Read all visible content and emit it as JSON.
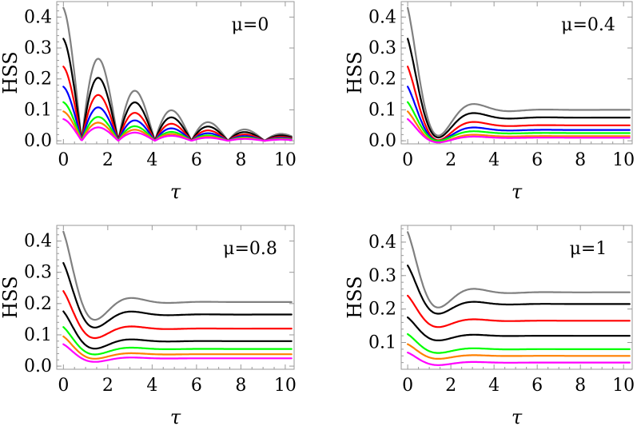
{
  "chart_data": [
    {
      "type": "line",
      "annotation": "μ=0",
      "xlabel": "τ",
      "ylabel": "HSS",
      "xlim": [
        -0.3,
        10.4
      ],
      "ylim": [
        -0.01,
        0.45
      ],
      "xticks": [
        0,
        2,
        4,
        6,
        8,
        10
      ],
      "yticks": [
        0.0,
        0.1,
        0.2,
        0.3,
        0.4
      ],
      "ytick_labels": [
        "0.0",
        "0.1",
        "0.2",
        "0.3",
        "0.4"
      ],
      "mu": 0,
      "series": [
        {
          "color": "#808080",
          "initial": 0.43
        },
        {
          "color": "#000000",
          "initial": 0.33
        },
        {
          "color": "#ff0000",
          "initial": 0.24
        },
        {
          "color": "#0000ff",
          "initial": 0.175
        },
        {
          "color": "#00ff00",
          "initial": 0.125
        },
        {
          "color": "#ff8000",
          "initial": 0.095
        },
        {
          "color": "#ff00ff",
          "initial": 0.07
        }
      ]
    },
    {
      "type": "line",
      "annotation": "μ=0.4",
      "xlabel": "τ",
      "ylabel": "HSS",
      "xlim": [
        -0.3,
        10.4
      ],
      "ylim": [
        -0.01,
        0.45
      ],
      "xticks": [
        0,
        2,
        4,
        6,
        8,
        10
      ],
      "yticks": [
        0.0,
        0.1,
        0.2,
        0.3,
        0.4
      ],
      "ytick_labels": [
        "0.0",
        "0.1",
        "0.2",
        "0.3",
        "0.4"
      ],
      "mu": 0.4,
      "series": [
        {
          "color": "#808080",
          "initial": 0.43,
          "final": 0.1
        },
        {
          "color": "#000000",
          "initial": 0.33,
          "final": 0.075
        },
        {
          "color": "#ff0000",
          "initial": 0.24,
          "final": 0.05
        },
        {
          "color": "#0000ff",
          "initial": 0.175,
          "final": 0.035
        },
        {
          "color": "#00ff00",
          "initial": 0.125,
          "final": 0.025
        },
        {
          "color": "#ff8000",
          "initial": 0.095,
          "final": 0.015
        },
        {
          "color": "#ff00ff",
          "initial": 0.07,
          "final": 0.01
        }
      ]
    },
    {
      "type": "line",
      "annotation": "μ=0.8",
      "xlabel": "τ",
      "ylabel": "HSS",
      "xlim": [
        -0.3,
        10.4
      ],
      "ylim": [
        -0.01,
        0.45
      ],
      "xticks": [
        0,
        2,
        4,
        6,
        8,
        10
      ],
      "yticks": [
        0.0,
        0.1,
        0.2,
        0.3,
        0.4
      ],
      "ytick_labels": [
        "0.0",
        "0.1",
        "0.2",
        "0.3",
        "0.4"
      ],
      "mu": 0.8,
      "series": [
        {
          "color": "#808080",
          "initial": 0.43,
          "final": 0.205
        },
        {
          "color": "#000000",
          "initial": 0.33,
          "final": 0.165
        },
        {
          "color": "#ff0000",
          "initial": 0.24,
          "final": 0.12
        },
        {
          "color": "#000000",
          "initial": 0.175,
          "final": 0.08
        },
        {
          "color": "#00ff00",
          "initial": 0.125,
          "final": 0.055
        },
        {
          "color": "#ff8000",
          "initial": 0.095,
          "final": 0.038
        },
        {
          "color": "#ff00ff",
          "initial": 0.07,
          "final": 0.025
        }
      ]
    },
    {
      "type": "line",
      "annotation": "μ=1",
      "xlabel": "τ",
      "ylabel": "HSS",
      "xlim": [
        -0.3,
        10.4
      ],
      "ylim": [
        0.02,
        0.45
      ],
      "xticks": [
        0,
        2,
        4,
        6,
        8,
        10
      ],
      "yticks": [
        0.1,
        0.2,
        0.3,
        0.4
      ],
      "ytick_labels": [
        "0.1",
        "0.2",
        "0.3",
        "0.4"
      ],
      "mu": 1,
      "series": [
        {
          "color": "#808080",
          "initial": 0.43,
          "final": 0.25
        },
        {
          "color": "#000000",
          "initial": 0.33,
          "final": 0.215
        },
        {
          "color": "#ff0000",
          "initial": 0.24,
          "final": 0.165
        },
        {
          "color": "#000000",
          "initial": 0.175,
          "final": 0.12
        },
        {
          "color": "#00ff00",
          "initial": 0.125,
          "final": 0.08
        },
        {
          "color": "#ff8000",
          "initial": 0.095,
          "final": 0.06
        },
        {
          "color": "#ff00ff",
          "initial": 0.07,
          "final": 0.04
        }
      ]
    }
  ]
}
